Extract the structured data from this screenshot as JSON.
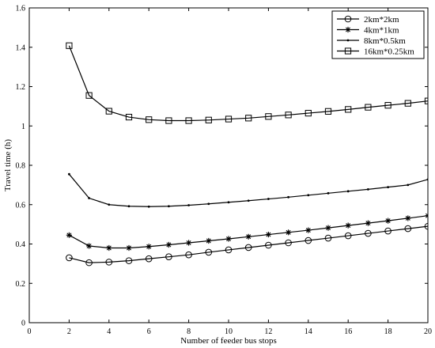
{
  "chart_data": {
    "type": "line",
    "title": "",
    "xlabel": "Number of feeder bus stops",
    "ylabel": "Travel time (h)",
    "xlim": [
      0,
      20
    ],
    "ylim": [
      0,
      1.6
    ],
    "xticks": [
      0,
      2,
      4,
      6,
      8,
      10,
      12,
      14,
      16,
      18,
      20
    ],
    "yticks": [
      0,
      0.2,
      0.4,
      0.6,
      0.8,
      1,
      1.2,
      1.4,
      1.6
    ],
    "grid": false,
    "legend_position": "top-right",
    "x": [
      2,
      3,
      4,
      5,
      6,
      7,
      8,
      9,
      10,
      11,
      12,
      13,
      14,
      15,
      16,
      17,
      18,
      19,
      20
    ],
    "series": [
      {
        "name": "2km*2km",
        "marker": "circle",
        "values": [
          0.33,
          0.305,
          0.308,
          0.315,
          0.325,
          0.335,
          0.345,
          0.358,
          0.37,
          0.382,
          0.394,
          0.406,
          0.418,
          0.43,
          0.442,
          0.454,
          0.466,
          0.478,
          0.49
        ]
      },
      {
        "name": "4km*1km",
        "marker": "star",
        "values": [
          0.445,
          0.39,
          0.38,
          0.38,
          0.387,
          0.396,
          0.406,
          0.416,
          0.426,
          0.437,
          0.448,
          0.459,
          0.47,
          0.482,
          0.494,
          0.506,
          0.518,
          0.531,
          0.544
        ]
      },
      {
        "name": "8km*0.5km",
        "marker": "point",
        "values": [
          0.755,
          0.633,
          0.6,
          0.592,
          0.59,
          0.592,
          0.597,
          0.604,
          0.612,
          0.62,
          0.629,
          0.638,
          0.648,
          0.658,
          0.668,
          0.678,
          0.689,
          0.7,
          0.728
        ]
      },
      {
        "name": "16km*0.25km",
        "marker": "square",
        "values": [
          1.408,
          1.155,
          1.075,
          1.045,
          1.032,
          1.027,
          1.027,
          1.03,
          1.035,
          1.04,
          1.048,
          1.056,
          1.065,
          1.074,
          1.084,
          1.095,
          1.105,
          1.115,
          1.127
        ]
      }
    ]
  }
}
